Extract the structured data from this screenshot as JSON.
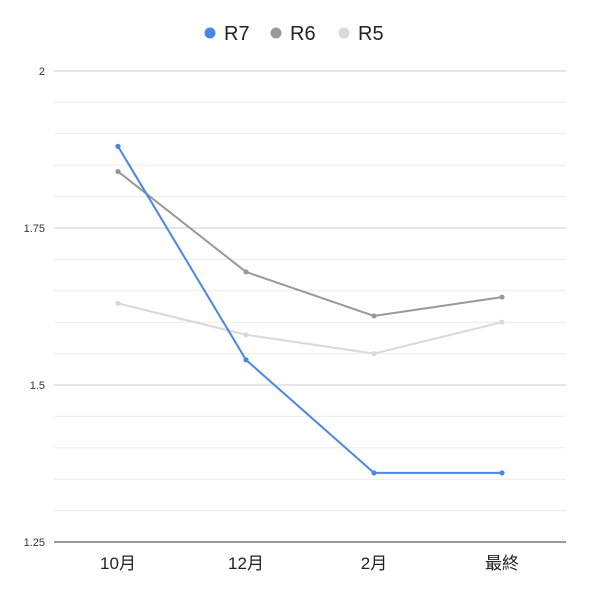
{
  "chart_data": {
    "type": "line",
    "title": "",
    "xlabel": "",
    "ylabel": "",
    "categories": [
      "10月",
      "12月",
      "2月",
      "最終"
    ],
    "ylim": [
      1.25,
      2
    ],
    "yticks": [
      "1.25",
      "1.5",
      "1.75",
      "2"
    ],
    "ytick_values": [
      1.25,
      1.5,
      1.75,
      2
    ],
    "minor_gridlines": true,
    "legend_position": "top-center",
    "series": [
      {
        "name": "R7",
        "color": "#4a86e8",
        "values": [
          1.88,
          1.54,
          1.36,
          1.36
        ]
      },
      {
        "name": "R6",
        "color": "#999999",
        "values": [
          1.84,
          1.68,
          1.61,
          1.64
        ]
      },
      {
        "name": "R5",
        "color": "#d9d9d9",
        "values": [
          1.63,
          1.58,
          1.55,
          1.6
        ]
      }
    ]
  }
}
